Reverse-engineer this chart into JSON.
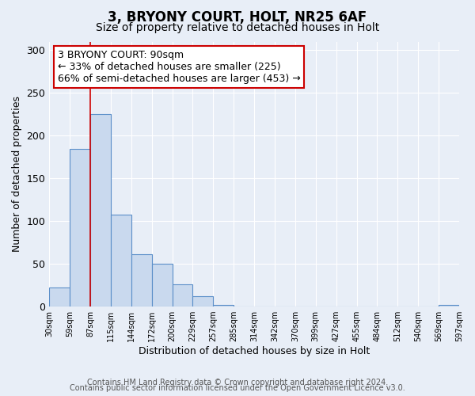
{
  "title": "3, BRYONY COURT, HOLT, NR25 6AF",
  "subtitle": "Size of property relative to detached houses in Holt",
  "xlabel": "Distribution of detached houses by size in Holt",
  "ylabel": "Number of detached properties",
  "bar_values": [
    22,
    184,
    225,
    108,
    61,
    50,
    26,
    12,
    2,
    0,
    0,
    0,
    0,
    0,
    0,
    0,
    0,
    0,
    0,
    2
  ],
  "bin_labels": [
    "30sqm",
    "59sqm",
    "87sqm",
    "115sqm",
    "144sqm",
    "172sqm",
    "200sqm",
    "229sqm",
    "257sqm",
    "285sqm",
    "314sqm",
    "342sqm",
    "370sqm",
    "399sqm",
    "427sqm",
    "455sqm",
    "484sqm",
    "512sqm",
    "540sqm",
    "569sqm",
    "597sqm"
  ],
  "bar_color": "#c9d9ee",
  "bar_edge_color": "#5b8fc9",
  "vertical_line_x": 2,
  "vertical_line_color": "#cc0000",
  "annotation_line1": "3 BRYONY COURT: 90sqm",
  "annotation_line2": "← 33% of detached houses are smaller (225)",
  "annotation_line3": "66% of semi-detached houses are larger (453) →",
  "annotation_box_edge_color": "#cc0000",
  "ylim": [
    0,
    310
  ],
  "yticks": [
    0,
    50,
    100,
    150,
    200,
    250,
    300
  ],
  "background_color": "#e8eef7",
  "plot_background_color": "#e8eef7",
  "footer_line1": "Contains HM Land Registry data © Crown copyright and database right 2024.",
  "footer_line2": "Contains public sector information licensed under the Open Government Licence v3.0.",
  "title_fontsize": 12,
  "subtitle_fontsize": 10,
  "annotation_fontsize": 9,
  "footer_fontsize": 7
}
